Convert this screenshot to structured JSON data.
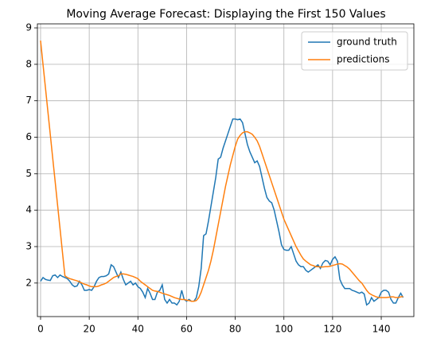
{
  "chart_data": {
    "type": "line",
    "title": "Moving Average Forecast: Displaying the First 150 Values",
    "x": [
      0,
      1,
      2,
      3,
      4,
      5,
      6,
      7,
      8,
      9,
      10,
      11,
      12,
      13,
      14,
      15,
      16,
      17,
      18,
      19,
      20,
      21,
      22,
      23,
      24,
      25,
      26,
      27,
      28,
      29,
      30,
      31,
      32,
      33,
      34,
      35,
      36,
      37,
      38,
      39,
      40,
      41,
      42,
      43,
      44,
      45,
      46,
      47,
      48,
      49,
      50,
      51,
      52,
      53,
      54,
      55,
      56,
      57,
      58,
      59,
      60,
      61,
      62,
      63,
      64,
      65,
      66,
      67,
      68,
      69,
      70,
      71,
      72,
      73,
      74,
      75,
      76,
      77,
      78,
      79,
      80,
      81,
      82,
      83,
      84,
      85,
      86,
      87,
      88,
      89,
      90,
      91,
      92,
      93,
      94,
      95,
      96,
      97,
      98,
      99,
      100,
      101,
      102,
      103,
      104,
      105,
      106,
      107,
      108,
      109,
      110,
      111,
      112,
      113,
      114,
      115,
      116,
      117,
      118,
      119,
      120,
      121,
      122,
      123,
      124,
      125,
      126,
      127,
      128,
      129,
      130,
      131,
      132,
      133,
      134,
      135,
      136,
      137,
      138,
      139,
      140,
      141,
      142,
      143,
      144,
      145,
      146,
      147,
      148,
      149
    ],
    "series": [
      {
        "name": "ground truth",
        "color": "#1f77b4",
        "values": [
          2.05,
          2.15,
          2.1,
          2.08,
          2.07,
          2.2,
          2.22,
          2.15,
          2.22,
          2.18,
          2.15,
          2.12,
          2.05,
          1.95,
          1.9,
          1.92,
          2.05,
          1.95,
          1.8,
          1.8,
          1.82,
          1.8,
          1.9,
          2.05,
          2.15,
          2.18,
          2.18,
          2.2,
          2.25,
          2.5,
          2.45,
          2.3,
          2.15,
          2.3,
          2.1,
          1.95,
          2.0,
          2.05,
          1.95,
          2.0,
          1.9,
          1.85,
          1.75,
          1.6,
          1.85,
          1.72,
          1.55,
          1.55,
          1.75,
          1.8,
          1.95,
          1.55,
          1.45,
          1.55,
          1.45,
          1.45,
          1.4,
          1.5,
          1.8,
          1.55,
          1.5,
          1.55,
          1.5,
          1.5,
          1.6,
          1.9,
          2.4,
          3.3,
          3.35,
          3.7,
          4.1,
          4.5,
          4.9,
          5.4,
          5.45,
          5.7,
          5.9,
          6.1,
          6.3,
          6.5,
          6.5,
          6.48,
          6.5,
          6.4,
          6.1,
          5.8,
          5.6,
          5.45,
          5.3,
          5.35,
          5.2,
          4.9,
          4.6,
          4.35,
          4.25,
          4.2,
          4.0,
          3.7,
          3.4,
          3.05,
          2.92,
          2.9,
          2.9,
          3.0,
          2.8,
          2.6,
          2.5,
          2.45,
          2.45,
          2.35,
          2.3,
          2.35,
          2.4,
          2.45,
          2.5,
          2.4,
          2.55,
          2.62,
          2.6,
          2.5,
          2.65,
          2.72,
          2.6,
          2.1,
          1.95,
          1.85,
          1.85,
          1.85,
          1.8,
          1.78,
          1.75,
          1.72,
          1.75,
          1.7,
          1.4,
          1.45,
          1.6,
          1.5,
          1.55,
          1.6,
          1.75,
          1.8,
          1.8,
          1.75,
          1.55,
          1.45,
          1.45,
          1.6,
          1.72,
          1.6
        ]
      },
      {
        "name": "predictions",
        "color": "#ff7f0e",
        "values": [
          8.65,
          8.0,
          7.36,
          6.71,
          6.07,
          5.42,
          4.78,
          4.13,
          3.49,
          2.84,
          2.2,
          2.15,
          2.12,
          2.1,
          2.08,
          2.06,
          2.03,
          2.0,
          1.97,
          1.95,
          1.92,
          1.9,
          1.9,
          1.9,
          1.92,
          1.95,
          1.97,
          2.0,
          2.05,
          2.1,
          2.15,
          2.18,
          2.2,
          2.25,
          2.25,
          2.24,
          2.22,
          2.2,
          2.18,
          2.15,
          2.12,
          2.05,
          2.0,
          1.95,
          1.9,
          1.85,
          1.8,
          1.78,
          1.77,
          1.75,
          1.72,
          1.7,
          1.68,
          1.66,
          1.63,
          1.6,
          1.58,
          1.56,
          1.55,
          1.55,
          1.53,
          1.52,
          1.5,
          1.5,
          1.52,
          1.6,
          1.75,
          1.95,
          2.15,
          2.35,
          2.6,
          2.9,
          3.25,
          3.6,
          3.95,
          4.3,
          4.65,
          4.95,
          5.25,
          5.5,
          5.75,
          5.95,
          6.05,
          6.12,
          6.15,
          6.15,
          6.12,
          6.08,
          6.0,
          5.9,
          5.75,
          5.55,
          5.35,
          5.15,
          4.95,
          4.75,
          4.55,
          4.35,
          4.15,
          3.95,
          3.75,
          3.6,
          3.45,
          3.3,
          3.15,
          3.0,
          2.88,
          2.76,
          2.66,
          2.6,
          2.55,
          2.5,
          2.48,
          2.45,
          2.45,
          2.44,
          2.44,
          2.45,
          2.45,
          2.46,
          2.48,
          2.5,
          2.52,
          2.53,
          2.52,
          2.48,
          2.44,
          2.38,
          2.3,
          2.22,
          2.14,
          2.06,
          2.0,
          1.9,
          1.8,
          1.72,
          1.68,
          1.65,
          1.62,
          1.6,
          1.6,
          1.6,
          1.6,
          1.61,
          1.62,
          1.62,
          1.6,
          1.6,
          1.62,
          1.63
        ]
      }
    ],
    "xlim": [
      -1.3,
      153.4
    ],
    "xticks": [
      0,
      20,
      40,
      60,
      80,
      100,
      120,
      140
    ],
    "ylim": [
      1.08,
      9.11
    ],
    "yticks": [
      2,
      3,
      4,
      5,
      6,
      7,
      8,
      9
    ],
    "grid": true,
    "legend": "upper right"
  }
}
